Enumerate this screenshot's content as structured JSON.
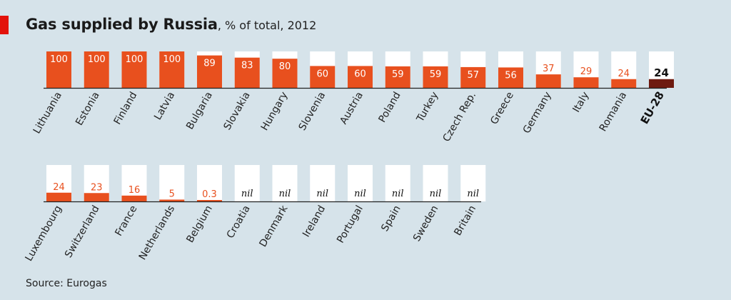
{
  "header": {
    "title": "Gas supplied by Russia",
    "subtitle": ", % of total, 2012"
  },
  "footer": {
    "source": "Source: Eurogas"
  },
  "colors": {
    "background": "#d6e3ea",
    "bar": "#e8501e",
    "bar_highlight": "#6e1a10",
    "track": "#ffffff",
    "accent": "#e3120b"
  },
  "chart_data": {
    "type": "bar",
    "title": "Gas supplied by Russia",
    "subtitle": ", % of total, 2012",
    "ylim": [
      0,
      100
    ],
    "grid": false,
    "rows": [
      {
        "categories": [
          "Lithuania",
          "Estonia",
          "Finland",
          "Latvia",
          "Bulgaria",
          "Slovakia",
          "Hungary",
          "Slovenia",
          "Austria",
          "Poland",
          "Turkey",
          "Czech Rep.",
          "Greece",
          "Germany",
          "Italy",
          "Romania",
          "EU-28"
        ],
        "values": [
          100,
          100,
          100,
          100,
          89,
          83,
          80,
          60,
          60,
          59,
          59,
          57,
          56,
          37,
          29,
          24,
          24
        ],
        "labels": [
          "100",
          "100",
          "100",
          "100",
          "89",
          "83",
          "80",
          "60",
          "60",
          "59",
          "59",
          "57",
          "56",
          "37",
          "29",
          "24",
          "24"
        ],
        "highlight": [
          "EU-28"
        ]
      },
      {
        "categories": [
          "Luxembourg",
          "Switzerland",
          "France",
          "Netherlands",
          "Belgium",
          "Croatia",
          "Denmark",
          "Ireland",
          "Portugal",
          "Spain",
          "Sweden",
          "Britain"
        ],
        "values": [
          24,
          23,
          16,
          5,
          0.3,
          0,
          0,
          0,
          0,
          0,
          0,
          0
        ],
        "labels": [
          "24",
          "23",
          "16",
          "5",
          "0.3",
          "nil",
          "nil",
          "nil",
          "nil",
          "nil",
          "nil",
          "nil"
        ],
        "highlight": []
      }
    ]
  }
}
